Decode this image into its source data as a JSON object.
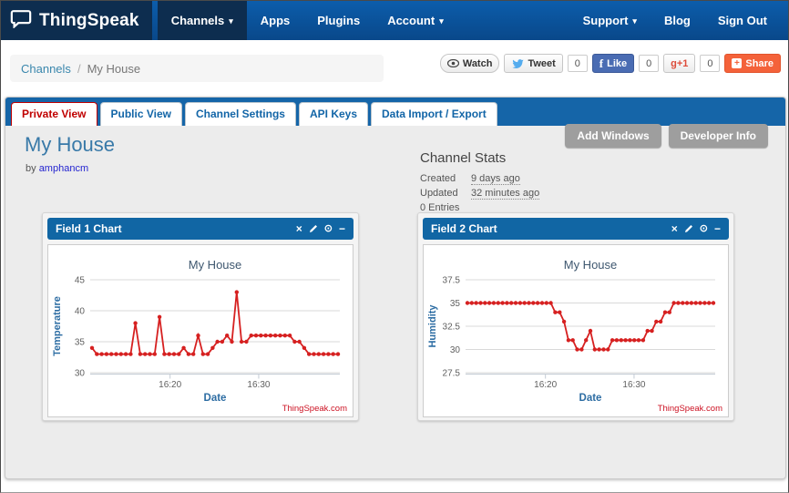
{
  "navbar": {
    "brand": "ThingSpeak",
    "items": [
      {
        "label": "Channels",
        "caret": "▾",
        "active": true
      },
      {
        "label": "Apps",
        "caret": ""
      },
      {
        "label": "Plugins",
        "caret": ""
      },
      {
        "label": "Account",
        "caret": "▾"
      }
    ],
    "right_items": [
      {
        "label": "Support",
        "caret": "▾"
      },
      {
        "label": "Blog",
        "caret": ""
      },
      {
        "label": "Sign Out",
        "caret": ""
      }
    ]
  },
  "breadcrumb": {
    "link": "Channels",
    "separator": "/",
    "current": "My House"
  },
  "social": {
    "watch_label": "Watch",
    "tweet_label": "Tweet",
    "tweet_count": "0",
    "like_icon": "f",
    "like_label": "Like",
    "like_count": "0",
    "plusone_label": "g+1",
    "plusone_count": "0",
    "share_icon": "+",
    "share_label": "Share"
  },
  "tabs": [
    {
      "label": "Private View",
      "active": true
    },
    {
      "label": "Public View"
    },
    {
      "label": "Channel Settings"
    },
    {
      "label": "API Keys"
    },
    {
      "label": "Data Import / Export"
    }
  ],
  "page": {
    "title": "My House",
    "by_label": "by",
    "author": "amphancm"
  },
  "stats": {
    "heading": "Channel Stats",
    "created_label": "Created",
    "created_value": "9 days ago",
    "updated_label": "Updated",
    "updated_value": "32 minutes ago",
    "entries": "0 Entries"
  },
  "actions": {
    "add_windows": "Add Windows",
    "developer_info": "Developer Info"
  },
  "window_icons": {
    "close": "×",
    "export": "⊙",
    "collapse": "−"
  },
  "colors": {
    "navbar_bg": "#0a539c",
    "navbar_dark": "#0d2d4f",
    "tabbar_bg": "#1565a8",
    "panel_header_bg": "#1166a4",
    "tab_active_red": "#c00000",
    "link_blue": "#3a87ad",
    "heading_blue": "#3879a8",
    "chart_line_red": "#d62020",
    "share_orange": "#f4623a",
    "facebook_blue": "#4a6cb3",
    "action_button_gray": "#9e9e9e"
  },
  "chart_data": [
    {
      "type": "line",
      "panel_title": "Field 1 Chart",
      "title": "My House",
      "xlabel": "Date",
      "ylabel": "Temperature",
      "ylim": [
        30,
        45
      ],
      "yticks": [
        30,
        35,
        40,
        45
      ],
      "xticks": [
        {
          "label": "16:20",
          "pos": 0.32
        },
        {
          "label": "16:30",
          "pos": 0.675
        }
      ],
      "grid": true,
      "legend": "none",
      "line_color": "#d62020",
      "watermark": "ThingSpeak.com",
      "values": [
        34,
        33,
        33,
        33,
        33,
        33,
        33,
        33,
        33,
        38,
        33,
        33,
        33,
        33,
        39,
        33,
        33,
        33,
        33,
        34,
        33,
        33,
        36,
        33,
        33,
        34,
        35,
        35,
        36,
        35,
        43,
        35,
        35,
        36,
        36,
        36,
        36,
        36,
        36,
        36,
        36,
        36,
        35,
        35,
        34,
        33,
        33,
        33,
        33,
        33,
        33,
        33
      ]
    },
    {
      "type": "line",
      "panel_title": "Field 2 Chart",
      "title": "My House",
      "xlabel": "Date",
      "ylabel": "Humidity",
      "ylim": [
        27.5,
        37.5
      ],
      "yticks": [
        27.5,
        30,
        32.5,
        35,
        37.5
      ],
      "xticks": [
        {
          "label": "16:20",
          "pos": 0.32
        },
        {
          "label": "16:30",
          "pos": 0.675
        }
      ],
      "grid": true,
      "legend": "none",
      "line_color": "#d62020",
      "watermark": "ThingSpeak.com",
      "values": [
        35,
        35,
        35,
        35,
        35,
        35,
        35,
        35,
        35,
        35,
        35,
        35,
        35,
        35,
        35,
        35,
        35,
        35,
        35,
        35,
        34,
        34,
        33,
        31,
        31,
        30,
        30,
        31,
        32,
        30,
        30,
        30,
        30,
        31,
        31,
        31,
        31,
        31,
        31,
        31,
        31,
        32,
        32,
        33,
        33,
        34,
        34,
        35,
        35,
        35,
        35,
        35,
        35,
        35,
        35,
        35,
        35
      ]
    }
  ]
}
